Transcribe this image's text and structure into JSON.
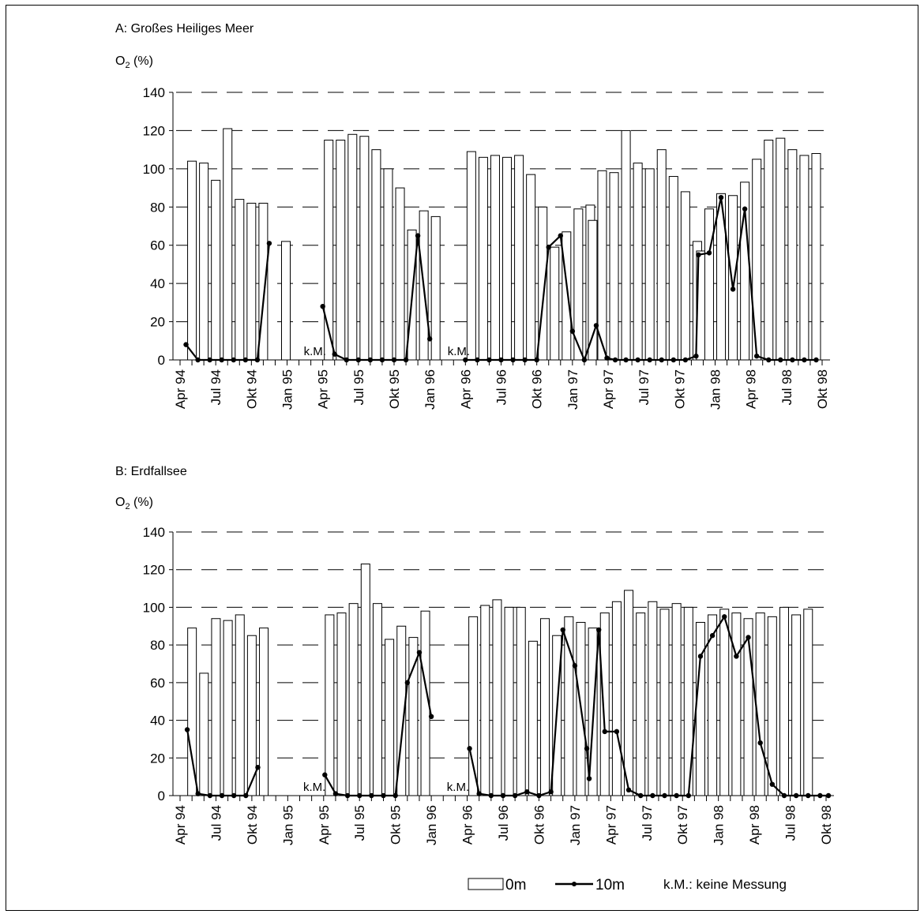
{
  "chart_data": [
    {
      "type": "bar+line",
      "title": "A: Großes Heiliges Meer",
      "ylabel_main": "O",
      "ylabel_sub": "2",
      "ylabel_unit": " (%)",
      "ylim": [
        0,
        140
      ],
      "yticks": [
        0,
        20,
        40,
        60,
        80,
        100,
        120,
        140
      ],
      "grid": "horizontal dashed",
      "x_range": [
        0,
        54
      ],
      "x_ticks": [
        {
          "label": "Apr 94",
          "x": 0
        },
        {
          "label": "Jul 94",
          "x": 3
        },
        {
          "label": "Okt 94",
          "x": 6
        },
        {
          "label": "Jan 95",
          "x": 9
        },
        {
          "label": "Apr 95",
          "x": 12
        },
        {
          "label": "Jul 95",
          "x": 15
        },
        {
          "label": "Okt 95",
          "x": 18
        },
        {
          "label": "Jan 96",
          "x": 21
        },
        {
          "label": "Apr 96",
          "x": 24
        },
        {
          "label": "Jul 96",
          "x": 27
        },
        {
          "label": "Okt 96",
          "x": 30
        },
        {
          "label": "Jan 97",
          "x": 33
        },
        {
          "label": "Apr 97",
          "x": 36
        },
        {
          "label": "Jul 97",
          "x": 39
        },
        {
          "label": "Okt 97",
          "x": 42
        },
        {
          "label": "Jan 98",
          "x": 45
        },
        {
          "label": "Apr 98",
          "x": 48
        },
        {
          "label": "Jul 98",
          "x": 51
        },
        {
          "label": "Okt 98",
          "x": 54
        }
      ],
      "annotations": [
        {
          "text": "k.M.",
          "x": 10.4
        },
        {
          "text": "k.M.",
          "x": 22.5
        }
      ],
      "series": [
        {
          "name": "0m",
          "kind": "bar",
          "x": [
            1.0,
            2.0,
            3.0,
            4.0,
            5.0,
            6.0,
            7.0,
            8.9,
            12.5,
            13.5,
            14.5,
            15.5,
            16.5,
            17.5,
            18.5,
            19.5,
            20.5,
            21.5,
            24.5,
            25.5,
            26.5,
            27.5,
            28.5,
            29.5,
            30.5,
            31.5,
            32.5,
            33.5,
            34.5,
            34.7,
            35.5,
            36.5,
            37.5,
            38.5,
            39.5,
            40.5,
            41.5,
            42.5,
            43.5,
            43.8,
            44.5,
            45.5,
            46.5,
            47.5,
            48.5,
            49.5,
            50.5,
            51.5,
            52.5,
            53.5
          ],
          "values": [
            104,
            103,
            94,
            121,
            84,
            82,
            82,
            62,
            115,
            115,
            118,
            117,
            110,
            100,
            90,
            68,
            78,
            75,
            109,
            106,
            107,
            106,
            107,
            97,
            80,
            59,
            67,
            79,
            81,
            73,
            99,
            98,
            120,
            103,
            100,
            110,
            96,
            88,
            62,
            57,
            79,
            87,
            86,
            93,
            105,
            115,
            116,
            110,
            107,
            108
          ]
        },
        {
          "name": "10m",
          "kind": "line",
          "x": [
            0.5,
            1.5,
            2.5,
            3.5,
            4.5,
            5.5,
            6.5,
            7.5,
            12.0,
            13.0,
            14.0,
            15.0,
            16.0,
            17.0,
            18.0,
            19.0,
            20.0,
            21.0,
            24.0,
            25.0,
            26.0,
            27.0,
            28.0,
            29.0,
            30.0,
            31.0,
            32.0,
            33.0,
            34.0,
            35.0,
            35.9,
            36.6,
            37.5,
            38.5,
            39.5,
            40.5,
            41.5,
            42.5,
            43.4,
            43.6,
            44.5,
            45.5,
            46.5,
            47.5,
            48.5,
            49.5,
            50.5,
            51.5,
            52.5,
            53.5
          ],
          "values": [
            8,
            0,
            0,
            0,
            0,
            0,
            0,
            61,
            28,
            3,
            0,
            0,
            0,
            0,
            0,
            0,
            65,
            11,
            0,
            0,
            0,
            0,
            0,
            0,
            0,
            59,
            65,
            15,
            0,
            18,
            1,
            0,
            0,
            0,
            0,
            0,
            0,
            0,
            2,
            55,
            56,
            85,
            37,
            79,
            2,
            0,
            0,
            0,
            0,
            0
          ]
        }
      ]
    },
    {
      "type": "bar+line",
      "title": "B: Erdfallsee",
      "ylabel_main": "O",
      "ylabel_sub": "2",
      "ylabel_unit": " (%)",
      "ylim": [
        0,
        140
      ],
      "yticks": [
        0,
        20,
        40,
        60,
        80,
        100,
        120,
        140
      ],
      "grid": "horizontal dashed",
      "x_range": [
        0,
        54
      ],
      "x_ticks": [
        {
          "label": "Apr 94",
          "x": 0
        },
        {
          "label": "Jul 94",
          "x": 3
        },
        {
          "label": "Okt 94",
          "x": 6
        },
        {
          "label": "Jan 95",
          "x": 9
        },
        {
          "label": "Apr 95",
          "x": 12
        },
        {
          "label": "Jul 95",
          "x": 15
        },
        {
          "label": "Okt 95",
          "x": 18
        },
        {
          "label": "Jan 96",
          "x": 21
        },
        {
          "label": "Apr 96",
          "x": 24
        },
        {
          "label": "Jul 96",
          "x": 27
        },
        {
          "label": "Okt 96",
          "x": 30
        },
        {
          "label": "Jan 97",
          "x": 33
        },
        {
          "label": "Apr 97",
          "x": 36
        },
        {
          "label": "Jul 97",
          "x": 39
        },
        {
          "label": "Okt 97",
          "x": 42
        },
        {
          "label": "Jan 98",
          "x": 45
        },
        {
          "label": "Apr 98",
          "x": 48
        },
        {
          "label": "Jul 98",
          "x": 51
        },
        {
          "label": "Okt 98",
          "x": 54
        }
      ],
      "annotations": [
        {
          "text": "k.M.",
          "x": 10.3
        },
        {
          "text": "k.M.",
          "x": 22.3
        }
      ],
      "series": [
        {
          "name": "0m",
          "kind": "bar",
          "x": [
            1.0,
            2.0,
            3.0,
            4.0,
            5.0,
            6.0,
            7.0,
            12.5,
            13.5,
            14.5,
            15.5,
            16.5,
            17.5,
            18.5,
            19.5,
            20.5,
            24.5,
            25.5,
            26.5,
            27.5,
            28.5,
            29.5,
            30.5,
            31.5,
            32.5,
            33.5,
            34.5,
            35.5,
            36.5,
            37.5,
            38.5,
            39.5,
            40.5,
            41.5,
            42.5,
            43.5,
            44.5,
            45.5,
            46.5,
            47.5,
            48.5,
            49.5,
            50.5,
            51.5,
            52.5
          ],
          "values": [
            89,
            65,
            94,
            93,
            96,
            85,
            89,
            96,
            97,
            102,
            123,
            102,
            83,
            90,
            84,
            98,
            95,
            101,
            104,
            100,
            100,
            82,
            94,
            85,
            95,
            92,
            89,
            97,
            103,
            109,
            97,
            103,
            99,
            102,
            100,
            92,
            96,
            99,
            97,
            94,
            97,
            95,
            100,
            96,
            99
          ]
        },
        {
          "name": "10m",
          "kind": "line",
          "x": [
            0.6,
            1.5,
            2.5,
            3.5,
            4.5,
            5.5,
            6.5,
            12.1,
            13.0,
            14.0,
            15.0,
            16.0,
            17.0,
            18.0,
            19.0,
            20.0,
            21.0,
            24.2,
            25.0,
            26.0,
            27.0,
            28.0,
            29.0,
            30.0,
            31.0,
            32.0,
            33.0,
            34.0,
            34.2,
            35.0,
            35.5,
            36.5,
            37.5,
            38.5,
            39.5,
            40.5,
            41.5,
            42.5,
            43.5,
            44.5,
            45.5,
            46.5,
            47.5,
            48.5,
            49.5,
            50.5,
            51.5,
            52.5,
            53.5,
            54.2
          ],
          "values": [
            35,
            1,
            0,
            0,
            0,
            0,
            15,
            11,
            1,
            0,
            0,
            0,
            0,
            0,
            60,
            76,
            42,
            25,
            1,
            0,
            0,
            0,
            2,
            0,
            2,
            88,
            69,
            25,
            9,
            88,
            34,
            34,
            3,
            0,
            0,
            0,
            0,
            0,
            74,
            85,
            95,
            74,
            84,
            28,
            6,
            0,
            0,
            0,
            0,
            0
          ]
        }
      ]
    }
  ],
  "legend": {
    "bar_label": "0m",
    "line_label": "10m",
    "note": "k.M.: keine Messung",
    "placement": "bottom-right"
  }
}
